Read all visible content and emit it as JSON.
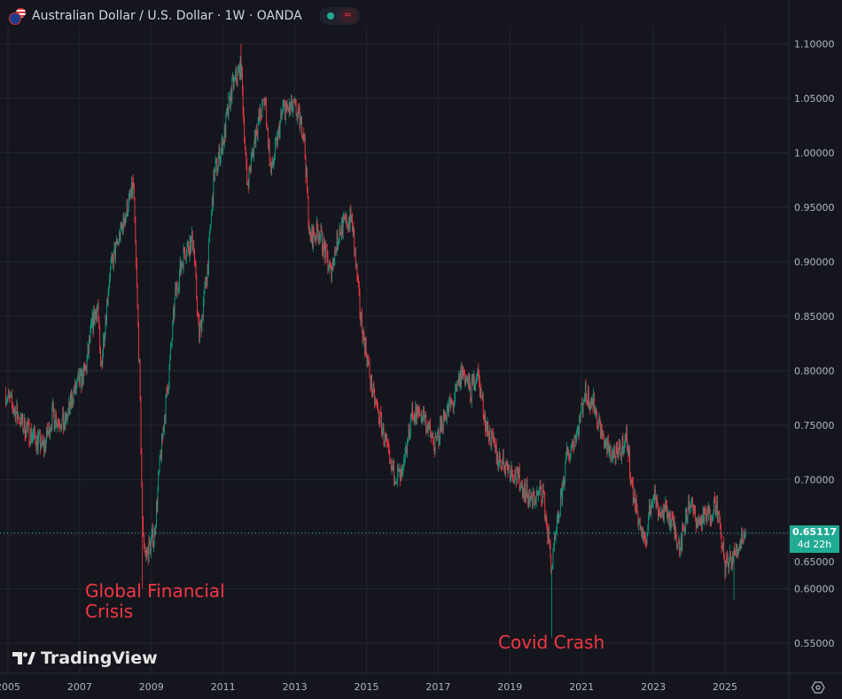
{
  "header": {
    "title": "Australian Dollar / U.S. Dollar · 1W · OANDA",
    "status_icon": "green-dot",
    "indicator_icon": "wave-icon"
  },
  "branding": {
    "logo_text": "TradingView"
  },
  "annotations": [
    {
      "text_line1": "Global Financial",
      "text_line2": "Crisis",
      "date": "2008-10"
    },
    {
      "text": "Covid Crash",
      "date": "2020-03"
    }
  ],
  "current_price": {
    "value": "0.65117",
    "countdown": "4d 22h"
  },
  "colors": {
    "background": "#15161d",
    "up": "#089981",
    "down": "#f23645",
    "annotation": "#f23645",
    "price_tag": "#22ab94",
    "grid": "#22242e"
  },
  "chart_data": {
    "type": "candlestick",
    "symbol": "AUDUSD",
    "interval": "1W",
    "ylim": [
      0.52,
      1.12
    ],
    "y_ticks": [
      "0.55000",
      "0.60000",
      "0.65000",
      "0.70000",
      "0.75000",
      "0.80000",
      "0.85000",
      "0.90000",
      "0.95000",
      "1.00000",
      "1.05000",
      "1.10000"
    ],
    "x_ticks": [
      "2005",
      "2007",
      "2009",
      "2011",
      "2013",
      "2015",
      "2017",
      "2019",
      "2021",
      "2023",
      "2025"
    ],
    "grid": true,
    "closes": [
      [
        "2004-12",
        0.78
      ],
      [
        "2005-06",
        0.75
      ],
      [
        "2006-01",
        0.73
      ],
      [
        "2006-04",
        0.76
      ],
      [
        "2006-08",
        0.75
      ],
      [
        "2006-11",
        0.78
      ],
      [
        "2007-03",
        0.8
      ],
      [
        "2007-05",
        0.84
      ],
      [
        "2007-07",
        0.86
      ],
      [
        "2007-08",
        0.8
      ],
      [
        "2007-11",
        0.89
      ],
      [
        "2008-02",
        0.92
      ],
      [
        "2008-05",
        0.95
      ],
      [
        "2008-07",
        0.97
      ],
      [
        "2008-09",
        0.8
      ],
      [
        "2008-10",
        0.66
      ],
      [
        "2008-11",
        0.63
      ],
      [
        "2009-02",
        0.65
      ],
      [
        "2009-04",
        0.72
      ],
      [
        "2009-07",
        0.8
      ],
      [
        "2009-09",
        0.87
      ],
      [
        "2009-12",
        0.91
      ],
      [
        "2010-03",
        0.92
      ],
      [
        "2010-05",
        0.83
      ],
      [
        "2010-08",
        0.9
      ],
      [
        "2010-10",
        0.98
      ],
      [
        "2011-01",
        1.01
      ],
      [
        "2011-04",
        1.06
      ],
      [
        "2011-07",
        1.08
      ],
      [
        "2011-09",
        0.97
      ],
      [
        "2011-12",
        1.02
      ],
      [
        "2012-03",
        1.05
      ],
      [
        "2012-05",
        0.98
      ],
      [
        "2012-09",
        1.04
      ],
      [
        "2013-01",
        1.04
      ],
      [
        "2013-04",
        1.02
      ],
      [
        "2013-06",
        0.92
      ],
      [
        "2013-09",
        0.93
      ],
      [
        "2014-01",
        0.89
      ],
      [
        "2014-04",
        0.93
      ],
      [
        "2014-08",
        0.94
      ],
      [
        "2014-11",
        0.85
      ],
      [
        "2015-03",
        0.78
      ],
      [
        "2015-07",
        0.74
      ],
      [
        "2015-09",
        0.71
      ],
      [
        "2016-01",
        0.7
      ],
      [
        "2016-04",
        0.76
      ],
      [
        "2016-08",
        0.76
      ],
      [
        "2016-12",
        0.73
      ],
      [
        "2017-03",
        0.76
      ],
      [
        "2017-06",
        0.77
      ],
      [
        "2017-09",
        0.8
      ],
      [
        "2017-12",
        0.78
      ],
      [
        "2018-02",
        0.8
      ],
      [
        "2018-05",
        0.75
      ],
      [
        "2018-09",
        0.72
      ],
      [
        "2019-01",
        0.71
      ],
      [
        "2019-04",
        0.7
      ],
      [
        "2019-08",
        0.68
      ],
      [
        "2019-12",
        0.69
      ],
      [
        "2020-03",
        0.62
      ],
      [
        "2020-05",
        0.66
      ],
      [
        "2020-08",
        0.72
      ],
      [
        "2020-12",
        0.75
      ],
      [
        "2021-02",
        0.78
      ],
      [
        "2021-05",
        0.77
      ],
      [
        "2021-09",
        0.73
      ],
      [
        "2022-01",
        0.72
      ],
      [
        "2022-04",
        0.74
      ],
      [
        "2022-06",
        0.69
      ],
      [
        "2022-10",
        0.64
      ],
      [
        "2023-01",
        0.69
      ],
      [
        "2023-03",
        0.67
      ],
      [
        "2023-06",
        0.67
      ],
      [
        "2023-10",
        0.64
      ],
      [
        "2024-01",
        0.68
      ],
      [
        "2024-04",
        0.66
      ],
      [
        "2024-08",
        0.67
      ],
      [
        "2024-10",
        0.68
      ],
      [
        "2025-01",
        0.62
      ],
      [
        "2025-04",
        0.63
      ],
      [
        "2025-07",
        0.65
      ],
      [
        "2025-08",
        0.65117
      ]
    ],
    "extreme_lows": [
      [
        "2008-10",
        0.6
      ],
      [
        "2020-03",
        0.555
      ],
      [
        "2025-04",
        0.59
      ]
    ],
    "extreme_highs": [
      [
        "2011-07",
        1.1
      ],
      [
        "2008-07",
        0.98
      ]
    ]
  }
}
